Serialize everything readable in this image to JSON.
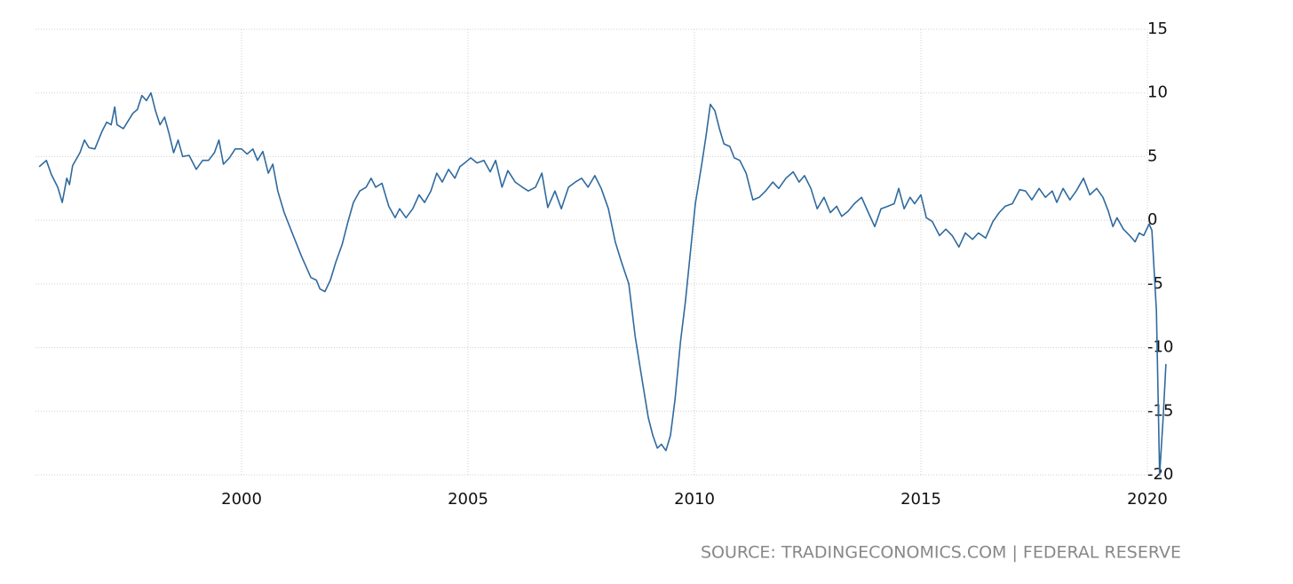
{
  "chart_data": {
    "type": "line",
    "source": "SOURCE: TRADINGECONOMICS.COM | FEDERAL RESERVE",
    "x": [
      1995.53,
      1995.69,
      1995.8,
      1995.94,
      1996.04,
      1996.14,
      1996.2,
      1996.27,
      1996.43,
      1996.53,
      1996.63,
      1996.76,
      1996.92,
      1997.02,
      1997.12,
      1997.2,
      1997.25,
      1997.39,
      1997.6,
      1997.7,
      1997.8,
      1997.9,
      1998.0,
      1998.1,
      1998.2,
      1998.3,
      1998.4,
      1998.5,
      1998.6,
      1998.7,
      1998.84,
      1999.0,
      1999.14,
      1999.27,
      1999.4,
      1999.5,
      1999.6,
      1999.73,
      1999.86,
      2000.0,
      2000.12,
      2000.25,
      2000.35,
      2000.47,
      2000.59,
      2000.69,
      2000.8,
      2000.94,
      2001.14,
      2001.33,
      2001.53,
      2001.65,
      2001.73,
      2001.84,
      2001.96,
      2002.08,
      2002.22,
      2002.35,
      2002.47,
      2002.61,
      2002.75,
      2002.86,
      2002.96,
      2003.1,
      2003.25,
      2003.39,
      2003.49,
      2003.63,
      2003.78,
      2003.92,
      2004.04,
      2004.18,
      2004.31,
      2004.43,
      2004.57,
      2004.71,
      2004.82,
      2004.96,
      2005.06,
      2005.2,
      2005.35,
      2005.49,
      2005.61,
      2005.75,
      2005.88,
      2006.04,
      2006.2,
      2006.33,
      2006.49,
      2006.63,
      2006.76,
      2006.92,
      2007.06,
      2007.22,
      2007.37,
      2007.51,
      2007.65,
      2007.8,
      2007.94,
      2008.1,
      2008.25,
      2008.39,
      2008.55,
      2008.69,
      2008.82,
      2008.98,
      2009.08,
      2009.18,
      2009.27,
      2009.37,
      2009.47,
      2009.57,
      2009.69,
      2009.8,
      2009.92,
      2010.02,
      2010.16,
      2010.25,
      2010.35,
      2010.45,
      2010.55,
      2010.65,
      2010.78,
      2010.88,
      2011.0,
      2011.14,
      2011.29,
      2011.43,
      2011.57,
      2011.73,
      2011.86,
      2012.02,
      2012.18,
      2012.31,
      2012.43,
      2012.57,
      2012.71,
      2012.86,
      2013.0,
      2013.14,
      2013.25,
      2013.39,
      2013.53,
      2013.69,
      2013.84,
      2013.98,
      2014.12,
      2014.27,
      2014.41,
      2014.51,
      2014.63,
      2014.76,
      2014.86,
      2015.0,
      2015.12,
      2015.25,
      2015.41,
      2015.55,
      2015.69,
      2015.84,
      2015.98,
      2016.14,
      2016.27,
      2016.43,
      2016.59,
      2016.73,
      2016.86,
      2017.02,
      2017.18,
      2017.31,
      2017.45,
      2017.61,
      2017.75,
      2017.9,
      2018.0,
      2018.14,
      2018.29,
      2018.43,
      2018.59,
      2018.73,
      2018.88,
      2019.02,
      2019.14,
      2019.24,
      2019.33,
      2019.47,
      2019.61,
      2019.73,
      2019.82,
      2019.92,
      2020.04,
      2020.1,
      2020.2,
      2020.27,
      2020.35,
      2020.41
    ],
    "series": [
      {
        "color": "#2f6a9e",
        "values": [
          4.2,
          4.7,
          3.6,
          2.6,
          1.4,
          3.3,
          2.8,
          4.3,
          5.3,
          6.3,
          5.7,
          5.6,
          7.0,
          7.7,
          7.5,
          8.9,
          7.5,
          7.2,
          8.4,
          8.7,
          9.8,
          9.4,
          10.0,
          8.6,
          7.5,
          8.1,
          6.8,
          5.3,
          6.3,
          5.0,
          5.1,
          4.0,
          4.7,
          4.7,
          5.3,
          6.3,
          4.4,
          4.9,
          5.6,
          5.6,
          5.2,
          5.6,
          4.7,
          5.4,
          3.7,
          4.4,
          2.3,
          0.6,
          -1.2,
          -2.9,
          -4.5,
          -4.7,
          -5.4,
          -5.6,
          -4.7,
          -3.3,
          -1.9,
          -0.1,
          1.4,
          2.3,
          2.6,
          3.3,
          2.6,
          2.9,
          1.1,
          0.2,
          0.9,
          0.2,
          0.9,
          2.0,
          1.4,
          2.3,
          3.7,
          3.0,
          4.0,
          3.3,
          4.2,
          4.6,
          4.9,
          4.5,
          4.7,
          3.8,
          4.7,
          2.6,
          3.9,
          3.0,
          2.6,
          2.3,
          2.6,
          3.7,
          1.0,
          2.3,
          0.9,
          2.6,
          3.0,
          3.3,
          2.6,
          3.5,
          2.5,
          0.9,
          -1.7,
          -3.3,
          -5.0,
          -9.1,
          -12.0,
          -15.5,
          -16.9,
          -17.9,
          -17.6,
          -18.1,
          -16.9,
          -14.1,
          -9.6,
          -6.4,
          -2.2,
          1.3,
          4.4,
          6.5,
          9.1,
          8.6,
          7.2,
          6.0,
          5.8,
          4.9,
          4.7,
          3.7,
          1.6,
          1.8,
          2.3,
          3.0,
          2.5,
          3.3,
          3.8,
          3.0,
          3.5,
          2.5,
          0.9,
          1.8,
          0.6,
          1.1,
          0.3,
          0.7,
          1.3,
          1.8,
          0.6,
          -0.5,
          0.9,
          1.1,
          1.3,
          2.5,
          0.9,
          1.8,
          1.3,
          2.0,
          0.2,
          -0.1,
          -1.2,
          -0.7,
          -1.2,
          -2.1,
          -1.0,
          -1.5,
          -1.0,
          -1.4,
          -0.1,
          0.6,
          1.1,
          1.3,
          2.4,
          2.3,
          1.6,
          2.5,
          1.8,
          2.3,
          1.4,
          2.5,
          1.6,
          2.3,
          3.3,
          2.0,
          2.5,
          1.8,
          0.7,
          -0.5,
          0.2,
          -0.7,
          -1.2,
          -1.7,
          -1.0,
          -1.2,
          -0.3,
          -0.8,
          -7.1,
          -20.0,
          -15.5,
          -11.3
        ]
      }
    ],
    "xlim": [
      1995.45,
      2020.51
    ],
    "xticks": [
      2000,
      2005,
      2010,
      2015,
      2020
    ],
    "ylim": [
      -20,
      15
    ],
    "yticks": [
      -20,
      -15,
      -10,
      -5,
      0,
      5,
      10,
      15
    ],
    "grid": true
  }
}
